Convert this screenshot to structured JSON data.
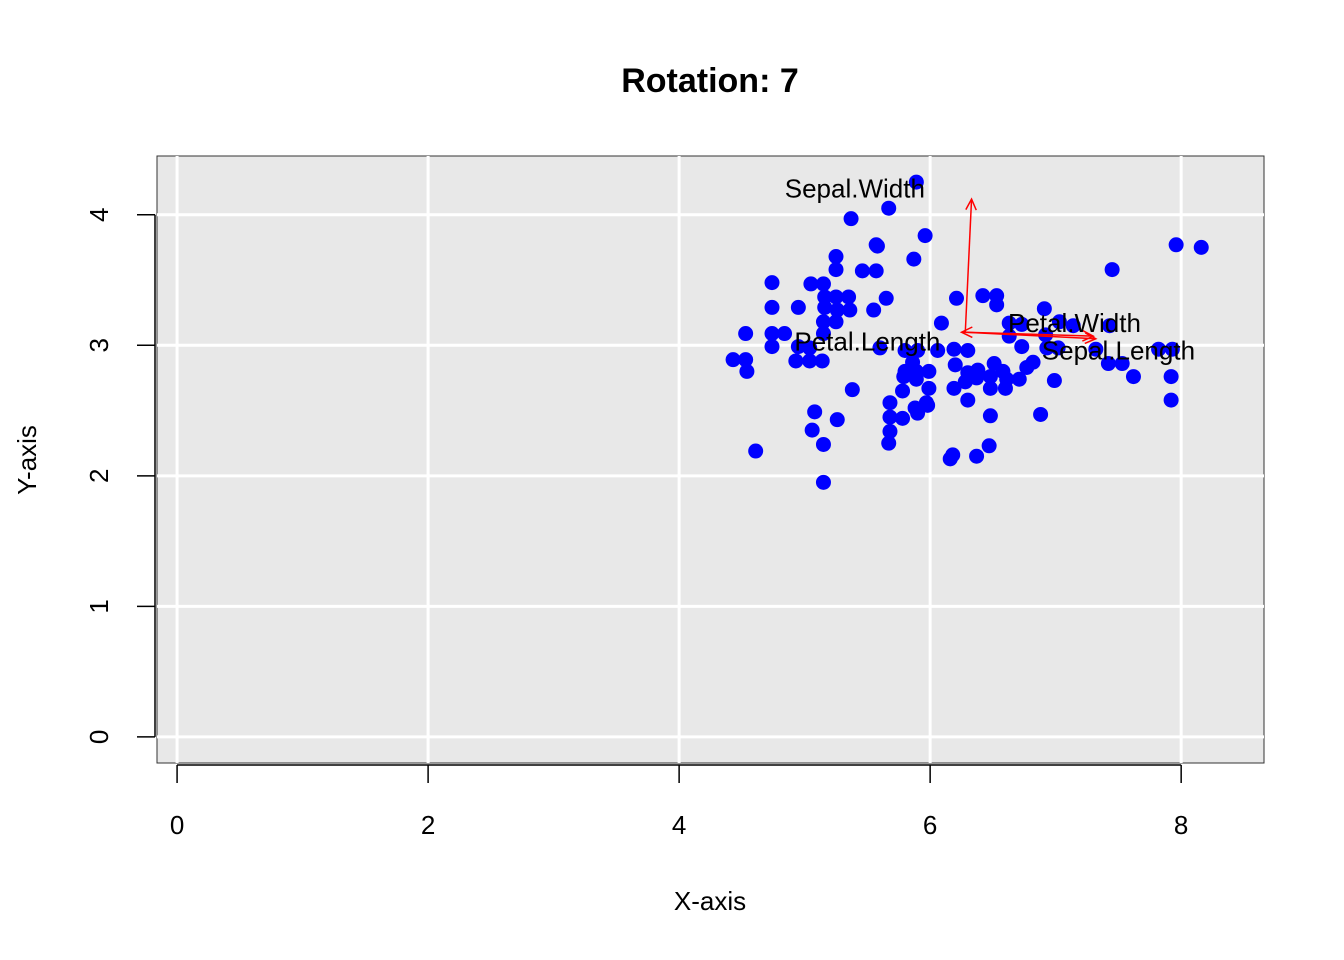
{
  "chart_data": {
    "type": "scatter",
    "title": "Rotation: 7",
    "xlabel": "X-axis",
    "ylabel": "Y-axis",
    "xlim": [
      -0.16,
      8.66
    ],
    "ylim": [
      -0.2,
      4.45
    ],
    "xticks": [
      0,
      2,
      4,
      6,
      8
    ],
    "yticks": [
      0,
      1,
      2,
      3,
      4
    ],
    "grid": true,
    "background": "#e8e8e8",
    "point_color": "#0000ff",
    "arrow_color": "#ff0000",
    "origin": [
      6.28,
      3.1
    ],
    "arrows": [
      {
        "label": "Sepal.Width",
        "to": [
          6.33,
          4.12
        ],
        "label_at": [
          5.4,
          4.2
        ]
      },
      {
        "label": "Petal.Width",
        "to": [
          7.3,
          3.07
        ],
        "label_at": [
          7.15,
          3.17
        ]
      },
      {
        "label": "Petal.Length",
        "to": [
          6.25,
          3.1
        ],
        "label_at": [
          5.5,
          3.03
        ]
      },
      {
        "label": "Sepal.Length",
        "to": [
          7.32,
          3.05
        ],
        "label_at": [
          7.5,
          2.96
        ]
      }
    ],
    "points": [
      [
        5.89,
        4.25
      ],
      [
        5.67,
        4.05
      ],
      [
        5.37,
        3.97
      ],
      [
        5.96,
        3.84
      ],
      [
        5.58,
        3.76
      ],
      [
        5.57,
        3.77
      ],
      [
        5.25,
        3.68
      ],
      [
        5.87,
        3.66
      ],
      [
        5.25,
        3.58
      ],
      [
        5.46,
        3.57
      ],
      [
        5.57,
        3.57
      ],
      [
        7.45,
        3.58
      ],
      [
        7.96,
        3.77
      ],
      [
        8.16,
        3.75
      ],
      [
        4.74,
        3.48
      ],
      [
        5.05,
        3.47
      ],
      [
        5.15,
        3.47
      ],
      [
        5.16,
        3.37
      ],
      [
        5.25,
        3.37
      ],
      [
        5.35,
        3.37
      ],
      [
        5.16,
        3.29
      ],
      [
        5.26,
        3.27
      ],
      [
        5.36,
        3.27
      ],
      [
        5.55,
        3.27
      ],
      [
        5.65,
        3.36
      ],
      [
        4.74,
        3.29
      ],
      [
        4.95,
        3.29
      ],
      [
        5.15,
        3.18
      ],
      [
        5.25,
        3.18
      ],
      [
        6.09,
        3.17
      ],
      [
        6.21,
        3.36
      ],
      [
        6.42,
        3.38
      ],
      [
        6.53,
        3.38
      ],
      [
        6.53,
        3.31
      ],
      [
        6.91,
        3.28
      ],
      [
        6.63,
        3.17
      ],
      [
        6.73,
        3.16
      ],
      [
        7.03,
        3.18
      ],
      [
        7.14,
        3.15
      ],
      [
        7.43,
        3.15
      ],
      [
        4.53,
        3.09
      ],
      [
        4.74,
        3.09
      ],
      [
        4.84,
        3.09
      ],
      [
        5.15,
        3.09
      ],
      [
        6.63,
        3.07
      ],
      [
        6.92,
        3.08
      ],
      [
        6.73,
        2.99
      ],
      [
        6.93,
        2.98
      ],
      [
        7.02,
        2.98
      ],
      [
        7.32,
        2.97
      ],
      [
        7.82,
        2.97
      ],
      [
        7.93,
        2.97
      ],
      [
        4.74,
        2.99
      ],
      [
        4.95,
        2.99
      ],
      [
        5.04,
        2.98
      ],
      [
        5.6,
        2.98
      ],
      [
        5.8,
        2.96
      ],
      [
        5.9,
        2.96
      ],
      [
        6.06,
        2.96
      ],
      [
        6.19,
        2.97
      ],
      [
        6.3,
        2.96
      ],
      [
        4.43,
        2.89
      ],
      [
        4.53,
        2.89
      ],
      [
        4.93,
        2.88
      ],
      [
        5.04,
        2.88
      ],
      [
        5.14,
        2.88
      ],
      [
        5.86,
        2.87
      ],
      [
        6.2,
        2.85
      ],
      [
        6.51,
        2.86
      ],
      [
        6.82,
        2.87
      ],
      [
        7.42,
        2.86
      ],
      [
        7.53,
        2.86
      ],
      [
        4.54,
        2.8
      ],
      [
        5.8,
        2.8
      ],
      [
        5.89,
        2.8
      ],
      [
        5.99,
        2.8
      ],
      [
        6.3,
        2.79
      ],
      [
        6.38,
        2.81
      ],
      [
        6.58,
        2.8
      ],
      [
        6.77,
        2.83
      ],
      [
        7.62,
        2.76
      ],
      [
        7.92,
        2.76
      ],
      [
        5.79,
        2.76
      ],
      [
        5.89,
        2.74
      ],
      [
        6.28,
        2.72
      ],
      [
        6.37,
        2.75
      ],
      [
        6.48,
        2.76
      ],
      [
        6.61,
        2.74
      ],
      [
        6.71,
        2.74
      ],
      [
        6.99,
        2.73
      ],
      [
        5.38,
        2.66
      ],
      [
        5.78,
        2.65
      ],
      [
        5.99,
        2.67
      ],
      [
        6.19,
        2.67
      ],
      [
        6.48,
        2.67
      ],
      [
        6.6,
        2.67
      ],
      [
        6.3,
        2.58
      ],
      [
        5.68,
        2.56
      ],
      [
        5.97,
        2.56
      ],
      [
        7.92,
        2.58
      ],
      [
        5.88,
        2.52
      ],
      [
        5.98,
        2.54
      ],
      [
        5.08,
        2.49
      ],
      [
        5.9,
        2.48
      ],
      [
        5.26,
        2.43
      ],
      [
        5.68,
        2.45
      ],
      [
        5.78,
        2.44
      ],
      [
        6.48,
        2.46
      ],
      [
        6.88,
        2.47
      ],
      [
        5.06,
        2.35
      ],
      [
        5.68,
        2.34
      ],
      [
        5.15,
        2.24
      ],
      [
        5.67,
        2.25
      ],
      [
        6.47,
        2.23
      ],
      [
        4.61,
        2.19
      ],
      [
        6.16,
        2.13
      ],
      [
        6.18,
        2.16
      ],
      [
        6.37,
        2.15
      ],
      [
        5.15,
        1.95
      ]
    ]
  }
}
